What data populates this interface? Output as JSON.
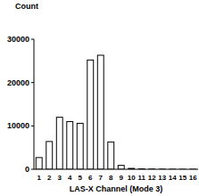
{
  "chart_data": {
    "type": "bar",
    "y_label": "Count",
    "x_label": "LAS-X Channel (Mode 3)",
    "categories": [
      "1",
      "2",
      "3",
      "4",
      "5",
      "6",
      "7",
      "8",
      "9",
      "10",
      "11",
      "12",
      "13",
      "14",
      "15",
      "16"
    ],
    "values": [
      2700,
      6400,
      12000,
      11000,
      10600,
      25200,
      26300,
      6300,
      900,
      200,
      100,
      50,
      30,
      20,
      10,
      10
    ],
    "color": "#ffffff",
    "ylim": [
      0,
      30000
    ],
    "yticks": [
      0,
      10000,
      20000,
      30000
    ]
  }
}
